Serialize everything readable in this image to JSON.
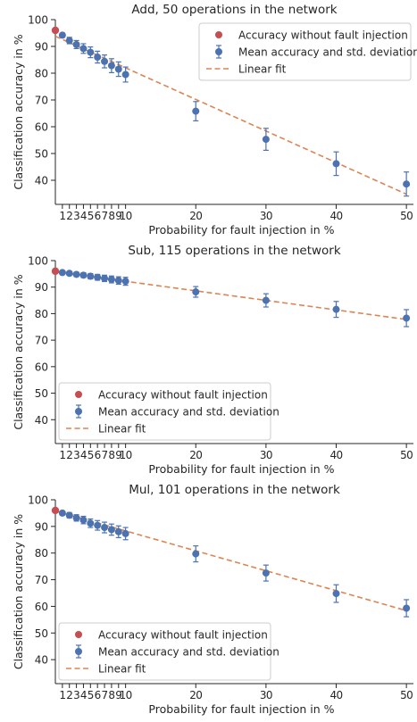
{
  "chart_data": [
    {
      "type": "scatter",
      "title": "Add, 50 operations in the network",
      "xlabel": "Probability for fault injection in %",
      "ylabel": "Classification accuracy in %",
      "xlim": [
        0,
        51
      ],
      "ylim": [
        31,
        100
      ],
      "xticks": [
        1,
        2,
        3,
        4,
        5,
        6,
        7,
        8,
        9,
        10,
        20,
        30,
        40,
        50
      ],
      "yticks": [
        40,
        50,
        60,
        70,
        80,
        90,
        100
      ],
      "legend": {
        "placement": "top-right",
        "entries": [
          "Accuracy without fault injection",
          "Mean accuracy and std. deviation",
          "Linear fit"
        ]
      },
      "baseline": {
        "name": "Accuracy without fault injection",
        "x": 0,
        "y": 96,
        "color": "#c44e52"
      },
      "series": [
        {
          "name": "Mean accuracy and std. deviation",
          "color": "#4c72b0",
          "x": [
            1,
            2,
            3,
            4,
            5,
            6,
            7,
            8,
            9,
            10,
            20,
            30,
            40,
            50
          ],
          "y": [
            94.2,
            92.2,
            90.7,
            89.2,
            87.8,
            86,
            84.4,
            82.8,
            81.5,
            79.5,
            65.8,
            55.3,
            46.2,
            38.6
          ],
          "std": [
            0.8,
            1.2,
            1.5,
            1.8,
            2,
            2.2,
            2.4,
            2.6,
            2.7,
            2.8,
            3.6,
            4.1,
            4.4,
            4.5
          ]
        }
      ],
      "fit": {
        "name": "Linear fit",
        "color": "#dd8452",
        "x": [
          0,
          50
        ],
        "y": [
          93.8,
          34.8
        ]
      }
    },
    {
      "type": "scatter",
      "title": "Sub, 115 operations in the network",
      "xlabel": "Probability for fault injection in %",
      "ylabel": "Classification accuracy in %",
      "xlim": [
        0,
        51
      ],
      "ylim": [
        31,
        100
      ],
      "xticks": [
        1,
        2,
        3,
        4,
        5,
        6,
        7,
        8,
        9,
        10,
        20,
        30,
        40,
        50
      ],
      "yticks": [
        40,
        50,
        60,
        70,
        80,
        90,
        100
      ],
      "legend": {
        "placement": "bottom-left",
        "entries": [
          "Accuracy without fault injection",
          "Mean accuracy and std. deviation",
          "Linear fit"
        ]
      },
      "baseline": {
        "name": "Accuracy without fault injection",
        "x": 0,
        "y": 96,
        "color": "#c44e52"
      },
      "series": [
        {
          "name": "Mean accuracy and std. deviation",
          "color": "#4c72b0",
          "x": [
            1,
            2,
            3,
            4,
            5,
            6,
            7,
            8,
            9,
            10,
            20,
            30,
            40,
            50
          ],
          "y": [
            95.5,
            95.2,
            94.8,
            94.5,
            94.1,
            93.7,
            93.3,
            92.9,
            92.5,
            92.2,
            88.2,
            85,
            81.6,
            78.3
          ],
          "std": [
            0.5,
            0.6,
            0.8,
            0.9,
            1,
            1.1,
            1.2,
            1.3,
            1.4,
            1.5,
            2,
            2.5,
            3,
            3.2
          ]
        }
      ],
      "fit": {
        "name": "Linear fit",
        "color": "#dd8452",
        "x": [
          0,
          50
        ],
        "y": [
          95.8,
          77.8
        ]
      }
    },
    {
      "type": "scatter",
      "title": "Mul, 101 operations in the network",
      "xlabel": "Probability for fault injection in %",
      "ylabel": "Classification accuracy in %",
      "xlim": [
        0,
        51
      ],
      "ylim": [
        31,
        100
      ],
      "xticks": [
        1,
        2,
        3,
        4,
        5,
        6,
        7,
        8,
        9,
        10,
        20,
        30,
        40,
        50
      ],
      "yticks": [
        40,
        50,
        60,
        70,
        80,
        90,
        100
      ],
      "legend": {
        "placement": "bottom-left",
        "entries": [
          "Accuracy without fault injection",
          "Mean accuracy and std. deviation",
          "Linear fit"
        ]
      },
      "baseline": {
        "name": "Accuracy without fault injection",
        "x": 0,
        "y": 96,
        "color": "#c44e52"
      },
      "series": [
        {
          "name": "Mean accuracy and std. deviation",
          "color": "#4c72b0",
          "x": [
            1,
            2,
            3,
            4,
            5,
            6,
            7,
            8,
            9,
            10,
            20,
            30,
            40,
            50
          ],
          "y": [
            95,
            94.2,
            93.2,
            92.4,
            91.2,
            90.4,
            89.6,
            88.8,
            88,
            87.3,
            79.7,
            72.5,
            64.8,
            59.3
          ],
          "std": [
            0.8,
            1,
            1.2,
            1.4,
            1.6,
            1.8,
            2,
            2.1,
            2.2,
            2.3,
            3,
            3,
            3.3,
            3.2
          ]
        }
      ],
      "fit": {
        "name": "Linear fit",
        "color": "#dd8452",
        "x": [
          0,
          50
        ],
        "y": [
          95.8,
          58.4
        ]
      }
    }
  ]
}
